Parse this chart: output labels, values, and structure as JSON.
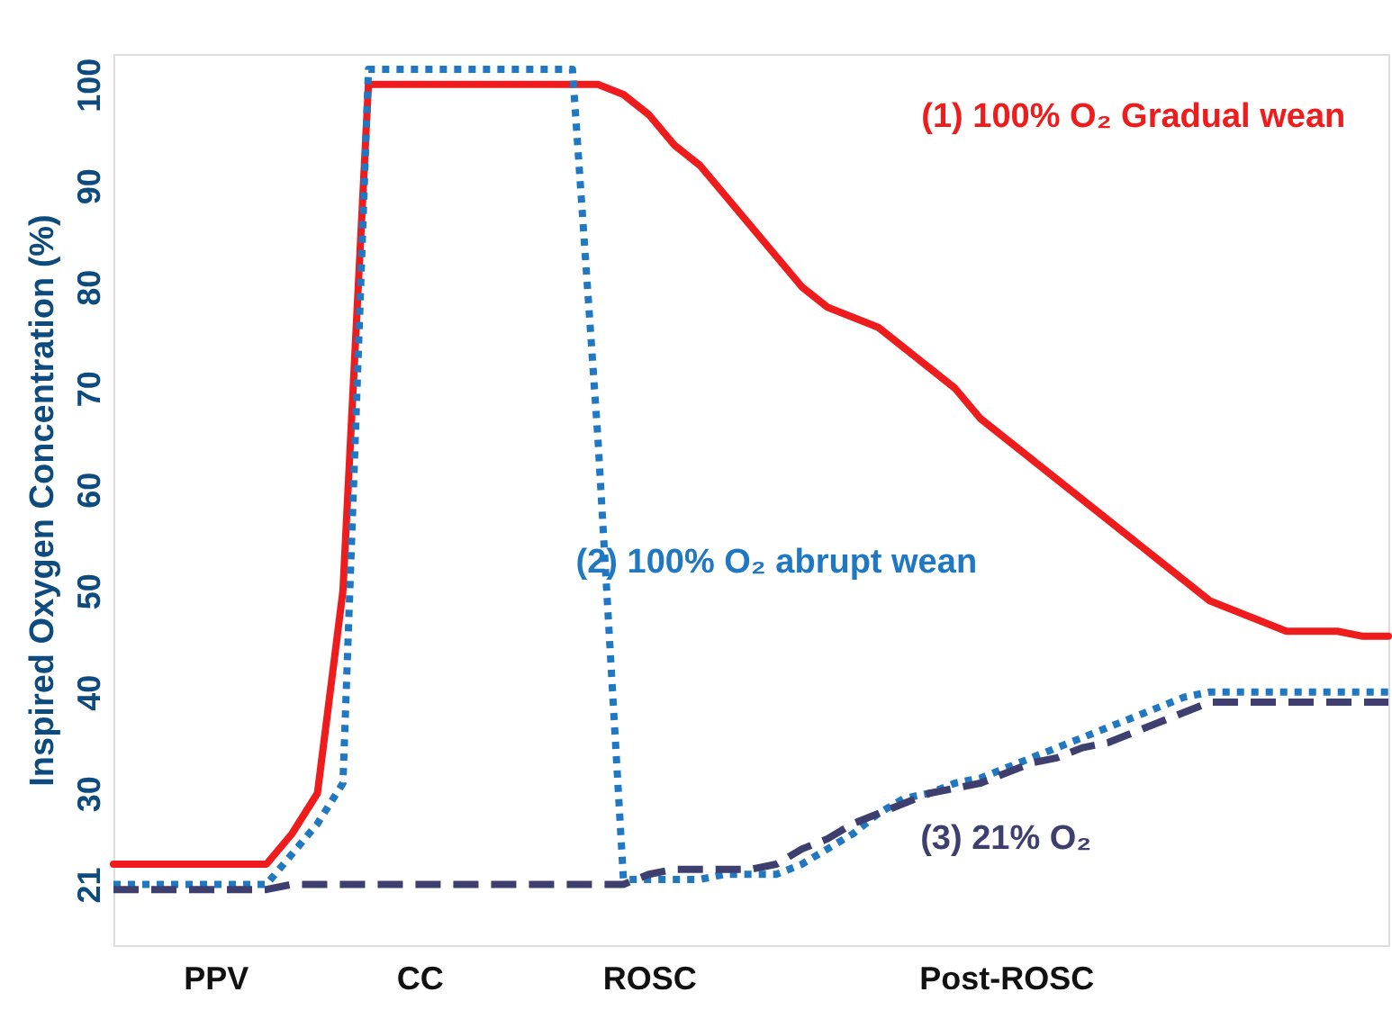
{
  "chart_data": {
    "type": "line",
    "ylabel": "Inspired Oxygen Concentration (%)",
    "categories": [
      null,
      null,
      null,
      null,
      "PPV",
      null,
      null,
      null,
      null,
      null,
      null,
      null,
      "CC",
      null,
      null,
      null,
      null,
      null,
      null,
      null,
      null,
      "ROSC",
      null,
      null,
      null,
      null,
      null,
      null,
      null,
      null,
      null,
      null,
      null,
      null,
      null,
      "Post-ROSC",
      null,
      null,
      null,
      null,
      null,
      null,
      null,
      null,
      null,
      null,
      null,
      null,
      null,
      null,
      null
    ],
    "ylim": [
      15,
      103
    ],
    "yticks": [
      21,
      30,
      40,
      50,
      60,
      70,
      80,
      90,
      100
    ],
    "grid": false,
    "legend": false,
    "marker": "none",
    "series": [
      {
        "name": "(1) 100% O₂ Gradual wean",
        "color": "#ee1c1c",
        "line_style": "solid",
        "values": [
          23,
          23,
          23,
          23,
          23,
          23,
          23,
          26,
          30,
          50,
          100,
          100,
          100,
          100,
          100,
          100,
          100,
          100,
          100,
          100,
          99,
          97,
          94,
          92,
          89,
          86,
          83,
          80,
          78,
          77,
          76,
          74,
          72,
          70,
          67,
          65,
          63,
          61,
          59,
          57,
          55,
          53,
          51,
          49,
          48,
          47,
          46,
          46,
          46,
          45.5,
          45.5
        ]
      },
      {
        "name": "(2) 100% O₂ abrupt wean",
        "color": "#1f78c1",
        "line_style": "dotted",
        "values": [
          21,
          21,
          21,
          21,
          21,
          21,
          21,
          24,
          27,
          31,
          101.5,
          101.5,
          101.5,
          101.5,
          101.5,
          101.5,
          101.5,
          101.5,
          101.5,
          65,
          21.5,
          21.5,
          21.5,
          21.5,
          22,
          22,
          22,
          23,
          24.5,
          26,
          28,
          29.5,
          30,
          31,
          31.5,
          32.5,
          33.5,
          34.5,
          35.5,
          36.5,
          37.5,
          38.5,
          39.5,
          40,
          40,
          40,
          40,
          40,
          40,
          40,
          40
        ]
      },
      {
        "name": "(3) 21% O₂",
        "color": "#3f3f6f",
        "line_style": "dashed",
        "values": [
          20.5,
          20.5,
          20.5,
          20.5,
          20.5,
          20.5,
          20.5,
          21,
          21,
          21,
          21,
          21,
          21,
          21,
          21,
          21,
          21,
          21,
          21,
          21,
          21,
          22,
          22.5,
          22.5,
          22.5,
          22.5,
          23,
          24.5,
          25.5,
          27,
          28,
          29,
          30,
          30.5,
          31,
          32,
          33,
          33.5,
          34.5,
          35,
          36,
          37,
          38,
          39,
          39,
          39,
          39,
          39,
          39,
          39,
          39
        ]
      }
    ]
  }
}
